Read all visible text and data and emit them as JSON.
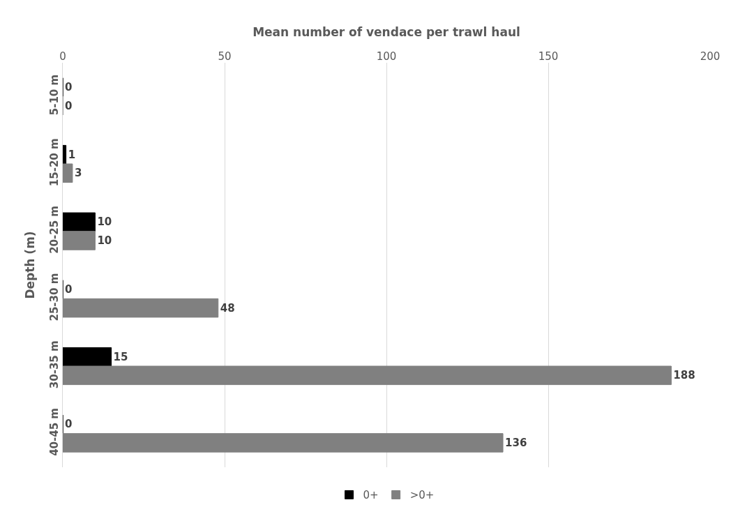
{
  "chart_data": {
    "type": "bar",
    "orientation": "horizontal",
    "xlabel": "Mean number of vendace per trawl haul",
    "ylabel": "Depth (m)",
    "categories": [
      "5-10 m",
      "15-20 m",
      "20-25 m",
      "25-30 m",
      "30-35 m",
      "40-45 m"
    ],
    "series": [
      {
        "name": "0+",
        "color": "#000000",
        "values": [
          0,
          1,
          10,
          0,
          15,
          0
        ]
      },
      {
        "name": ">0+",
        "color": "#808080",
        "values": [
          0,
          3,
          10,
          48,
          188,
          136
        ]
      }
    ],
    "xlim": [
      0,
      200
    ],
    "xticks": [
      0,
      50,
      100,
      150,
      200
    ],
    "grid": "x",
    "legend": "bottom",
    "data_labels": true
  }
}
